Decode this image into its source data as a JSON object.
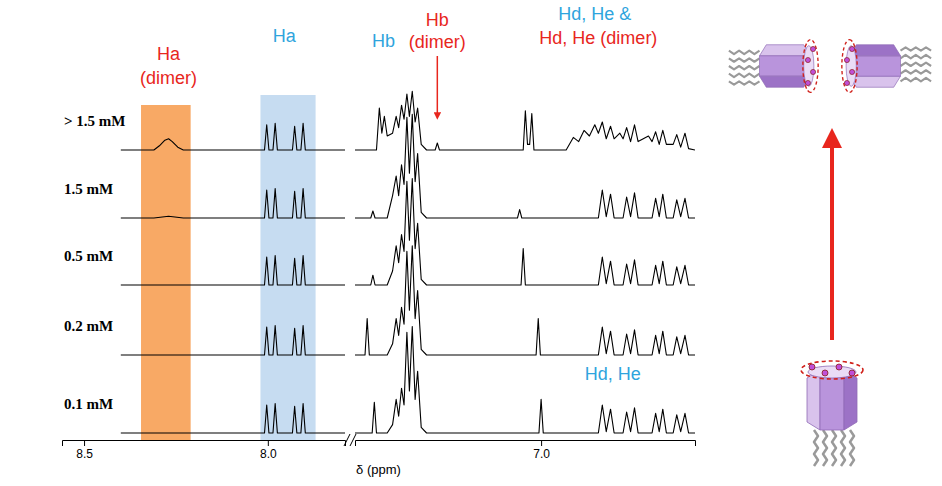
{
  "chart_data": {
    "type": "line",
    "x_label": "δ (ppm)",
    "tick_labels": "x",
    "axis_segments": [
      {
        "xlim": [
          8.56,
          7.79
        ],
        "xticks": [
          8.5,
          {
            "value": 8,
            "label": "8.0"
          }
        ]
      },
      {
        "xlim": [
          7.52,
          6.57
        ],
        "xticks": [
          {
            "value": 7,
            "label": "7.0"
          }
        ]
      }
    ],
    "highlights": [
      {
        "x_range": [
          8.345,
          8.21
        ],
        "color": "#f79a4a"
      },
      {
        "x_range": [
          8.02,
          7.87
        ],
        "color": "#bcd6ee"
      }
    ],
    "annotations": [
      {
        "text": "Ha (dimer)",
        "color": "#e8261d",
        "x": 8.27
      },
      {
        "text": "Ha",
        "color": "#2fa4dd",
        "x": 7.955
      },
      {
        "text": "Hb",
        "color": "#2fa4dd",
        "x": 7.44
      },
      {
        "text": "Hb (dimer)",
        "color": "#e8261d",
        "x": 7.29
      },
      {
        "text": "Hd, He &",
        "color": "#2fa4dd",
        "x": 6.85
      },
      {
        "text": "Hd, He (dimer)",
        "color": "#e8261d",
        "x": 6.84
      },
      {
        "text": "Hd, He",
        "color": "#2fa4dd",
        "x": 6.8
      }
    ],
    "series": [
      {
        "name": "> 1.5 mM",
        "color": "#000000",
        "x": [
          8.4,
          8.31,
          8.295,
          8.28,
          8.27,
          8.26,
          8.245,
          8.23,
          8.009,
          8.003,
          7.997,
          7.986,
          7.98,
          7.974,
          7.933,
          7.927,
          7.921,
          7.91,
          7.904,
          7.898,
          7.79,
          7.65,
          7.52,
          7.46,
          7.452,
          7.445,
          7.438,
          7.43,
          7.415,
          7.405,
          7.398,
          7.39,
          7.383,
          7.375,
          7.368,
          7.36,
          7.352,
          7.345,
          7.335,
          7.32,
          7.296,
          7.29,
          7.284,
          7.05,
          7.044,
          7.038,
          7.032,
          7.026,
          7.02,
          6.93,
          6.91,
          6.895,
          6.88,
          6.865,
          6.85,
          6.84,
          6.829,
          6.818,
          6.806,
          6.796,
          6.78,
          6.771,
          6.761,
          6.75,
          6.739,
          6.729,
          6.7,
          6.69,
          6.68,
          6.67,
          6.66,
          6.65,
          6.631,
          6.621,
          6.61,
          6.598,
          6.588,
          6.57
        ],
        "values": [
          0,
          0,
          0.15,
          0.35,
          0.4,
          0.3,
          0.1,
          0,
          0,
          0.9,
          0,
          0,
          0.95,
          0,
          0,
          0.85,
          0,
          0,
          0.95,
          0,
          0,
          null,
          0,
          0,
          1.5,
          0.6,
          1.2,
          0.5,
          0.6,
          1.2,
          0.8,
          1.6,
          1.1,
          2.0,
          1.2,
          2.1,
          1.0,
          1.5,
          0.2,
          0,
          0,
          0.25,
          0,
          0,
          1.4,
          0.2,
          0.2,
          1.3,
          0,
          0,
          0.45,
          0.3,
          0.7,
          0.5,
          0.9,
          0.6,
          1.0,
          0.4,
          0.85,
          0.4,
          0.6,
          0.4,
          0.8,
          0.3,
          0.9,
          0.3,
          0.5,
          0.3,
          0.65,
          0.2,
          0.7,
          0.2,
          0.2,
          0.55,
          0.1,
          0.6,
          0.05,
          0
        ]
      },
      {
        "name": "1.5 mM",
        "color": "#000000",
        "x": [
          8.4,
          8.31,
          8.27,
          8.23,
          8.009,
          8.003,
          7.997,
          7.986,
          7.98,
          7.974,
          7.933,
          7.927,
          7.921,
          7.91,
          7.904,
          7.898,
          7.79,
          7.65,
          7.52,
          7.476,
          7.47,
          7.464,
          7.43,
          7.415,
          7.405,
          7.398,
          7.39,
          7.383,
          7.375,
          7.368,
          7.36,
          7.352,
          7.345,
          7.335,
          7.32,
          7.066,
          7.06,
          7.054,
          6.84,
          6.829,
          6.818,
          6.806,
          6.796,
          6.771,
          6.761,
          6.75,
          6.739,
          6.729,
          6.69,
          6.68,
          6.67,
          6.66,
          6.65,
          6.631,
          6.621,
          6.61,
          6.598,
          6.588,
          6.57
        ],
        "values": [
          0,
          0,
          0.06,
          0,
          0,
          1.0,
          0,
          0,
          1.05,
          0,
          0,
          0.95,
          0,
          0,
          1.05,
          0,
          0,
          null,
          0,
          0,
          0.25,
          0,
          0,
          0.8,
          1.5,
          0.8,
          1.9,
          1.2,
          3.6,
          1.6,
          3.7,
          1.3,
          2.3,
          0.2,
          0,
          0,
          0.3,
          0,
          0,
          1.0,
          0.05,
          0.85,
          0,
          0,
          0.75,
          0.05,
          0.9,
          0,
          0,
          0.7,
          0.05,
          0.85,
          0,
          0,
          0.65,
          0.05,
          0.7,
          0,
          0
        ]
      },
      {
        "name": "0.5 mM",
        "color": "#000000",
        "x": [
          8.4,
          8.009,
          8.003,
          7.997,
          7.986,
          7.98,
          7.974,
          7.933,
          7.927,
          7.921,
          7.91,
          7.904,
          7.898,
          7.79,
          7.65,
          7.52,
          7.476,
          7.47,
          7.464,
          7.43,
          7.415,
          7.405,
          7.398,
          7.39,
          7.383,
          7.375,
          7.368,
          7.36,
          7.352,
          7.345,
          7.335,
          7.32,
          7.056,
          7.05,
          7.044,
          6.84,
          6.829,
          6.818,
          6.806,
          6.796,
          6.771,
          6.761,
          6.75,
          6.739,
          6.729,
          6.69,
          6.68,
          6.67,
          6.66,
          6.65,
          6.631,
          6.621,
          6.61,
          6.598,
          6.588,
          6.57
        ],
        "values": [
          0,
          0,
          1.0,
          0,
          0,
          1.05,
          0,
          0,
          0.95,
          0,
          0,
          1.05,
          0,
          0,
          null,
          0,
          0,
          0.35,
          0,
          0,
          0.5,
          1.4,
          0.8,
          1.8,
          1.2,
          3.7,
          1.6,
          3.8,
          1.3,
          2.2,
          0.2,
          0,
          0,
          1.3,
          0,
          0,
          1.0,
          0.05,
          0.85,
          0,
          0,
          0.75,
          0.05,
          0.9,
          0,
          0,
          0.7,
          0.05,
          0.85,
          0,
          0,
          0.65,
          0.05,
          0.7,
          0,
          0
        ]
      },
      {
        "name": "0.2 mM",
        "color": "#000000",
        "x": [
          8.4,
          8.009,
          8.003,
          7.997,
          7.986,
          7.98,
          7.974,
          7.933,
          7.927,
          7.921,
          7.91,
          7.904,
          7.898,
          7.79,
          7.65,
          7.52,
          7.492,
          7.486,
          7.48,
          7.43,
          7.415,
          7.405,
          7.398,
          7.39,
          7.383,
          7.375,
          7.368,
          7.36,
          7.352,
          7.345,
          7.335,
          7.32,
          7.014,
          7.008,
          7.002,
          6.84,
          6.829,
          6.818,
          6.806,
          6.796,
          6.771,
          6.761,
          6.75,
          6.739,
          6.729,
          6.69,
          6.68,
          6.67,
          6.66,
          6.65,
          6.631,
          6.621,
          6.61,
          6.598,
          6.588,
          6.57
        ],
        "values": [
          0,
          0,
          1.0,
          0,
          0,
          1.05,
          0,
          0,
          0.95,
          0,
          0,
          1.05,
          0,
          0,
          null,
          0,
          0,
          1.3,
          0,
          0,
          0.4,
          1.3,
          0.7,
          1.7,
          1.1,
          3.7,
          1.6,
          3.9,
          1.3,
          2.3,
          0.2,
          0,
          0,
          1.3,
          0,
          0,
          1.0,
          0.05,
          0.85,
          0,
          0,
          0.75,
          0.05,
          0.9,
          0,
          0,
          0.7,
          0.05,
          0.85,
          0,
          0,
          0.65,
          0.05,
          0.7,
          0,
          0
        ]
      },
      {
        "name": "0.1 mM",
        "color": "#000000",
        "x": [
          8.4,
          8.009,
          8.003,
          7.997,
          7.986,
          7.98,
          7.974,
          7.933,
          7.927,
          7.921,
          7.91,
          7.904,
          7.898,
          7.79,
          7.65,
          7.52,
          7.472,
          7.466,
          7.46,
          7.43,
          7.415,
          7.405,
          7.398,
          7.39,
          7.383,
          7.375,
          7.368,
          7.36,
          7.352,
          7.345,
          7.335,
          7.32,
          7.006,
          7.0,
          6.994,
          6.84,
          6.829,
          6.818,
          6.806,
          6.796,
          6.771,
          6.761,
          6.75,
          6.739,
          6.729,
          6.69,
          6.68,
          6.67,
          6.66,
          6.65,
          6.631,
          6.621,
          6.61,
          6.598,
          6.588,
          6.57
        ],
        "values": [
          0,
          0,
          1.0,
          0,
          0,
          1.05,
          0,
          0,
          0.95,
          0,
          0,
          1.05,
          0,
          0,
          null,
          0,
          0,
          1.1,
          0,
          0,
          0.3,
          1.2,
          0.6,
          1.6,
          1.0,
          3.6,
          1.5,
          3.8,
          1.2,
          2.2,
          0.2,
          0,
          0,
          1.2,
          0,
          0,
          1.0,
          0.05,
          0.85,
          0,
          0,
          0.75,
          0.05,
          0.9,
          0,
          0,
          0.7,
          0.05,
          0.85,
          0,
          0,
          0.65,
          0.05,
          0.7,
          0,
          0
        ]
      }
    ]
  }
}
